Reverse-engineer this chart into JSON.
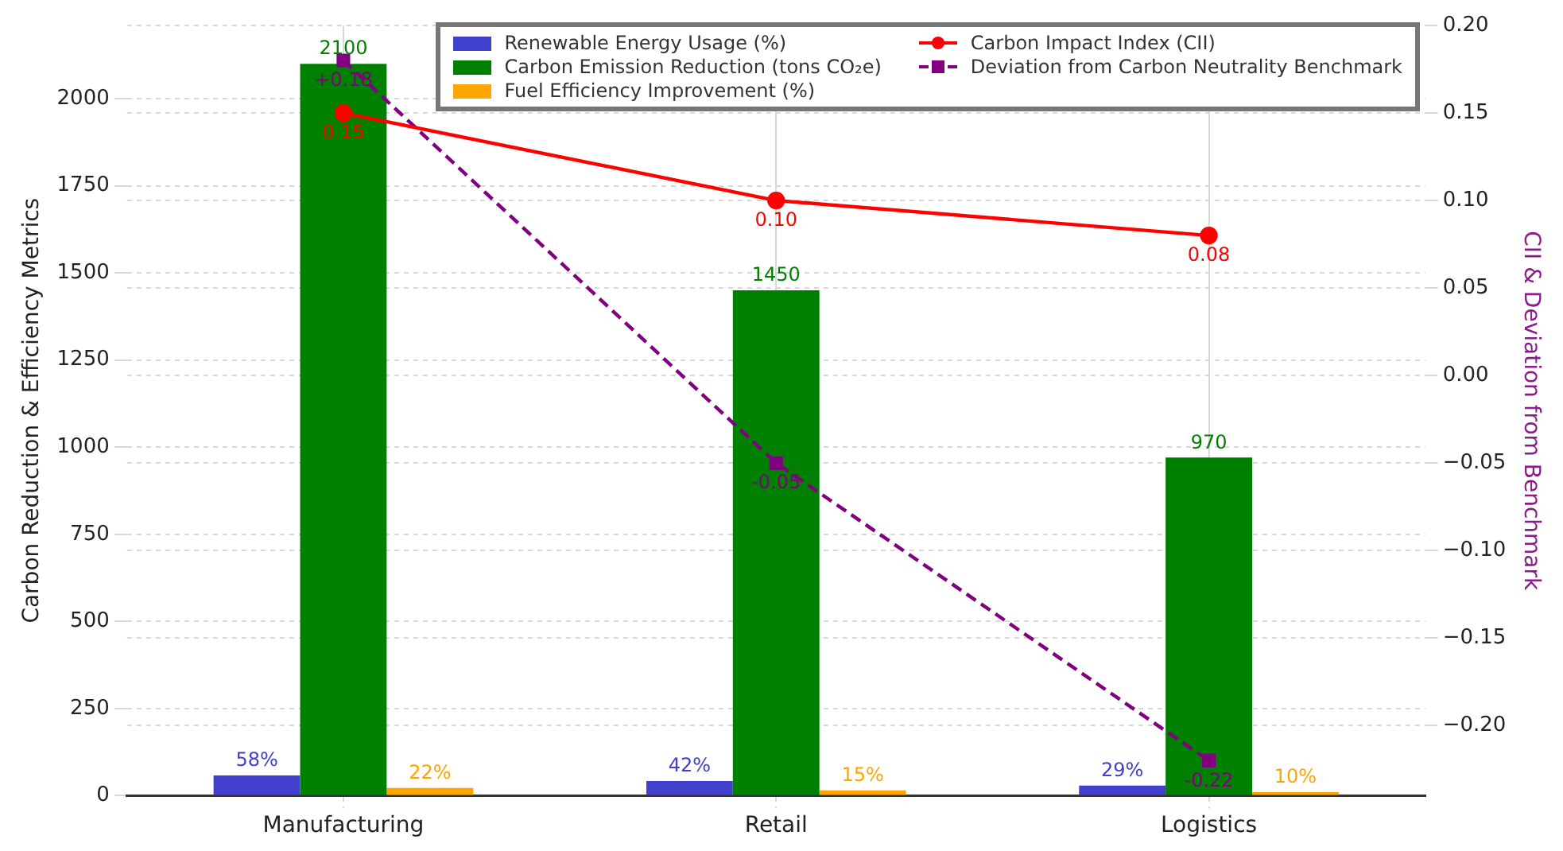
{
  "chart_data": {
    "type": "bar",
    "categories": [
      "Manufacturing",
      "Retail",
      "Logistics"
    ],
    "ylabel": "Carbon Reduction & Efficiency Metrics",
    "y2label": "CII & Deviation from Benchmark",
    "ylim": [
      0,
      2210
    ],
    "yticks": [
      0,
      250,
      500,
      750,
      1000,
      1250,
      1500,
      1750,
      2000
    ],
    "y2lim": [
      -0.24,
      0.2
    ],
    "y2ticks": [
      {
        "value": -0.2,
        "label": "−0.20"
      },
      {
        "value": -0.15,
        "label": "−0.15"
      },
      {
        "value": -0.1,
        "label": "−0.10"
      },
      {
        "value": -0.05,
        "label": "−0.05"
      },
      {
        "value": 0,
        "label": "0.00"
      },
      {
        "value": 0.05,
        "label": "0.05"
      },
      {
        "value": 0.1,
        "label": "0.10"
      },
      {
        "value": 0.15,
        "label": "0.15"
      },
      {
        "value": 0.2,
        "label": "0.20"
      }
    ],
    "grid": true,
    "legend": "top right",
    "series": [
      {
        "name": "Renewable Energy Usage (%)",
        "color": "#4040cc",
        "values": [
          58,
          42,
          29
        ],
        "value_labels": [
          "58%",
          "42%",
          "29%"
        ]
      },
      {
        "name": "Carbon Emission Reduction (tons CO₂e)",
        "color": "#008000",
        "values": [
          2100,
          1450,
          970
        ],
        "value_labels": [
          "2100",
          "1450",
          "970"
        ]
      },
      {
        "name": "Fuel Efficiency Improvement (%)",
        "color": "#ffa500",
        "values": [
          22,
          15,
          10
        ],
        "value_labels": [
          "22%",
          "15%",
          "10%"
        ]
      },
      {
        "name": "Carbon Impact Index (CII)",
        "type": "line",
        "axis": "y2",
        "color": "#ff0000",
        "marker": "circle",
        "line_style": "solid",
        "values": [
          0.15,
          0.1,
          0.08
        ],
        "value_labels": [
          "0.15",
          "0.10",
          "0.08"
        ]
      },
      {
        "name": "Deviation from Carbon Neutrality Benchmark",
        "type": "line",
        "axis": "y2",
        "color": "#800080",
        "marker": "square",
        "line_style": "dashed",
        "values": [
          0.18,
          -0.05,
          -0.22
        ],
        "value_labels": [
          "+0.18",
          "-0.05",
          "-0.22"
        ]
      }
    ]
  }
}
